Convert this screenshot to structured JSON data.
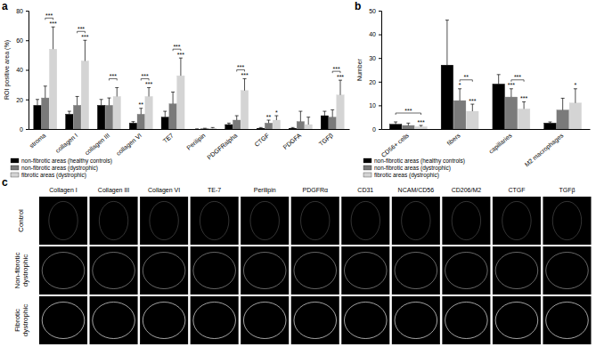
{
  "chart_data": [
    {
      "type": "bar",
      "title": "a",
      "y_label": "ROI positive area (%)",
      "categories": [
        "stroma",
        "collagen I",
        "collagen III",
        "collagen VI",
        "TE7",
        "Perilipin",
        "PDGFRalpha",
        "CTGF",
        "PDGFA",
        "TGFβ"
      ],
      "series": [
        {
          "name": "non-fibrotic areas (healthy controls)",
          "color": "#000000",
          "values": [
            16,
            10,
            16,
            4,
            8,
            0,
            3,
            0.5,
            0.5,
            9
          ],
          "errors": [
            4,
            2,
            4,
            1,
            4,
            0.1,
            1,
            0.5,
            0.5,
            3
          ]
        },
        {
          "name": "non-fibrotic areas (dystrophic)",
          "color": "#7a7a7a",
          "values": [
            21,
            16,
            16,
            10,
            17,
            0.2,
            6,
            4,
            5,
            8
          ],
          "errors": [
            8,
            6,
            5,
            4,
            8,
            0.3,
            3,
            2,
            7,
            5
          ]
        },
        {
          "name": "fibrotic areas (dystrophic)",
          "color": "#d4d4d4",
          "values": [
            54,
            46,
            22,
            22,
            36,
            0.5,
            26,
            6,
            3,
            23
          ],
          "errors": [
            15,
            14,
            6,
            6,
            12,
            0.5,
            8,
            3,
            5,
            10
          ]
        }
      ],
      "ylim": [
        0,
        80
      ],
      "yticks": [
        0,
        20,
        40,
        60,
        80
      ],
      "grid": false,
      "legend": "lower left",
      "annotations": [
        {
          "text": "***",
          "category": 0,
          "series": 2
        },
        {
          "text": "***",
          "category": 1,
          "series": 2
        },
        {
          "text": "**",
          "category": 3,
          "series": 1
        },
        {
          "text": "***",
          "category": 3,
          "series": 2
        },
        {
          "text": "***",
          "category": 4,
          "series": 2
        },
        {
          "text": "***",
          "category": 6,
          "series": 2
        },
        {
          "text": "**",
          "category": 7,
          "series": 1
        },
        {
          "text": "*",
          "category": 7,
          "series": 2
        },
        {
          "text": "***",
          "category": 9,
          "series": 2
        }
      ],
      "brackets": [
        {
          "text": "***",
          "category": 0,
          "from": 1,
          "to": 2
        },
        {
          "text": "***",
          "category": 1,
          "from": 1,
          "to": 2
        },
        {
          "text": "***",
          "category": 2,
          "from": 1,
          "to": 2
        },
        {
          "text": "***",
          "category": 3,
          "from": 1,
          "to": 2
        },
        {
          "text": "***",
          "category": 4,
          "from": 1,
          "to": 2
        },
        {
          "text": "***",
          "category": 6,
          "from": 1,
          "to": 2
        },
        {
          "text": "***",
          "category": 9,
          "from": 1,
          "to": 2
        }
      ]
    },
    {
      "type": "bar",
      "title": "b",
      "y_label": "Number",
      "categories": [
        "CD56+ cells",
        "fibers",
        "capillaries",
        "M2 macrophages"
      ],
      "series": [
        {
          "name": "non-fibrotic areas (healthy controls)",
          "color": "#000000",
          "values": [
            2,
            27,
            19,
            2.5
          ],
          "errors": [
            1,
            19,
            4,
            0.5
          ]
        },
        {
          "name": "non-fibrotic areas (dystrophic)",
          "color": "#7a7a7a",
          "values": [
            1.5,
            12,
            13.5,
            8
          ],
          "errors": [
            1,
            5,
            3.5,
            5
          ]
        },
        {
          "name": "fibrotic areas (dystrophic)",
          "color": "#d4d4d4",
          "values": [
            1,
            7.5,
            8.5,
            11
          ],
          "errors": [
            0.5,
            3,
            3,
            6
          ]
        }
      ],
      "ylim": [
        0,
        50
      ],
      "yticks": [
        0,
        10,
        20,
        30,
        40,
        50
      ],
      "grid": false,
      "legend": "lower left",
      "annotations": [
        {
          "text": "***",
          "category": 0,
          "series": 2
        },
        {
          "text": "*",
          "category": 1,
          "series": 1
        },
        {
          "text": "***",
          "category": 1,
          "series": 2
        },
        {
          "text": "***",
          "category": 2,
          "series": 1
        },
        {
          "text": "***",
          "category": 2,
          "series": 2
        },
        {
          "text": "*",
          "category": 3,
          "series": 2
        }
      ],
      "brackets": [
        {
          "text": "***",
          "category": 0,
          "from": 0,
          "to": 2
        },
        {
          "text": "**",
          "category": 1,
          "from": 1,
          "to": 2
        },
        {
          "text": "***",
          "category": 2,
          "from": 1,
          "to": 2
        }
      ]
    }
  ],
  "image_panel": {
    "title": "c",
    "columns": [
      "Collagen I",
      "Collagen III",
      "Collagen VI",
      "TE-7",
      "Perilipin",
      "PDGFRα",
      "CD31",
      "NCAM/CD56",
      "CD206/M2",
      "CTGF",
      "TGFβ"
    ],
    "rows": [
      [
        "Control"
      ],
      [
        "Non-fibrotic",
        "dystrophic"
      ],
      [
        "Fibrotic",
        "dystrophic"
      ]
    ]
  }
}
